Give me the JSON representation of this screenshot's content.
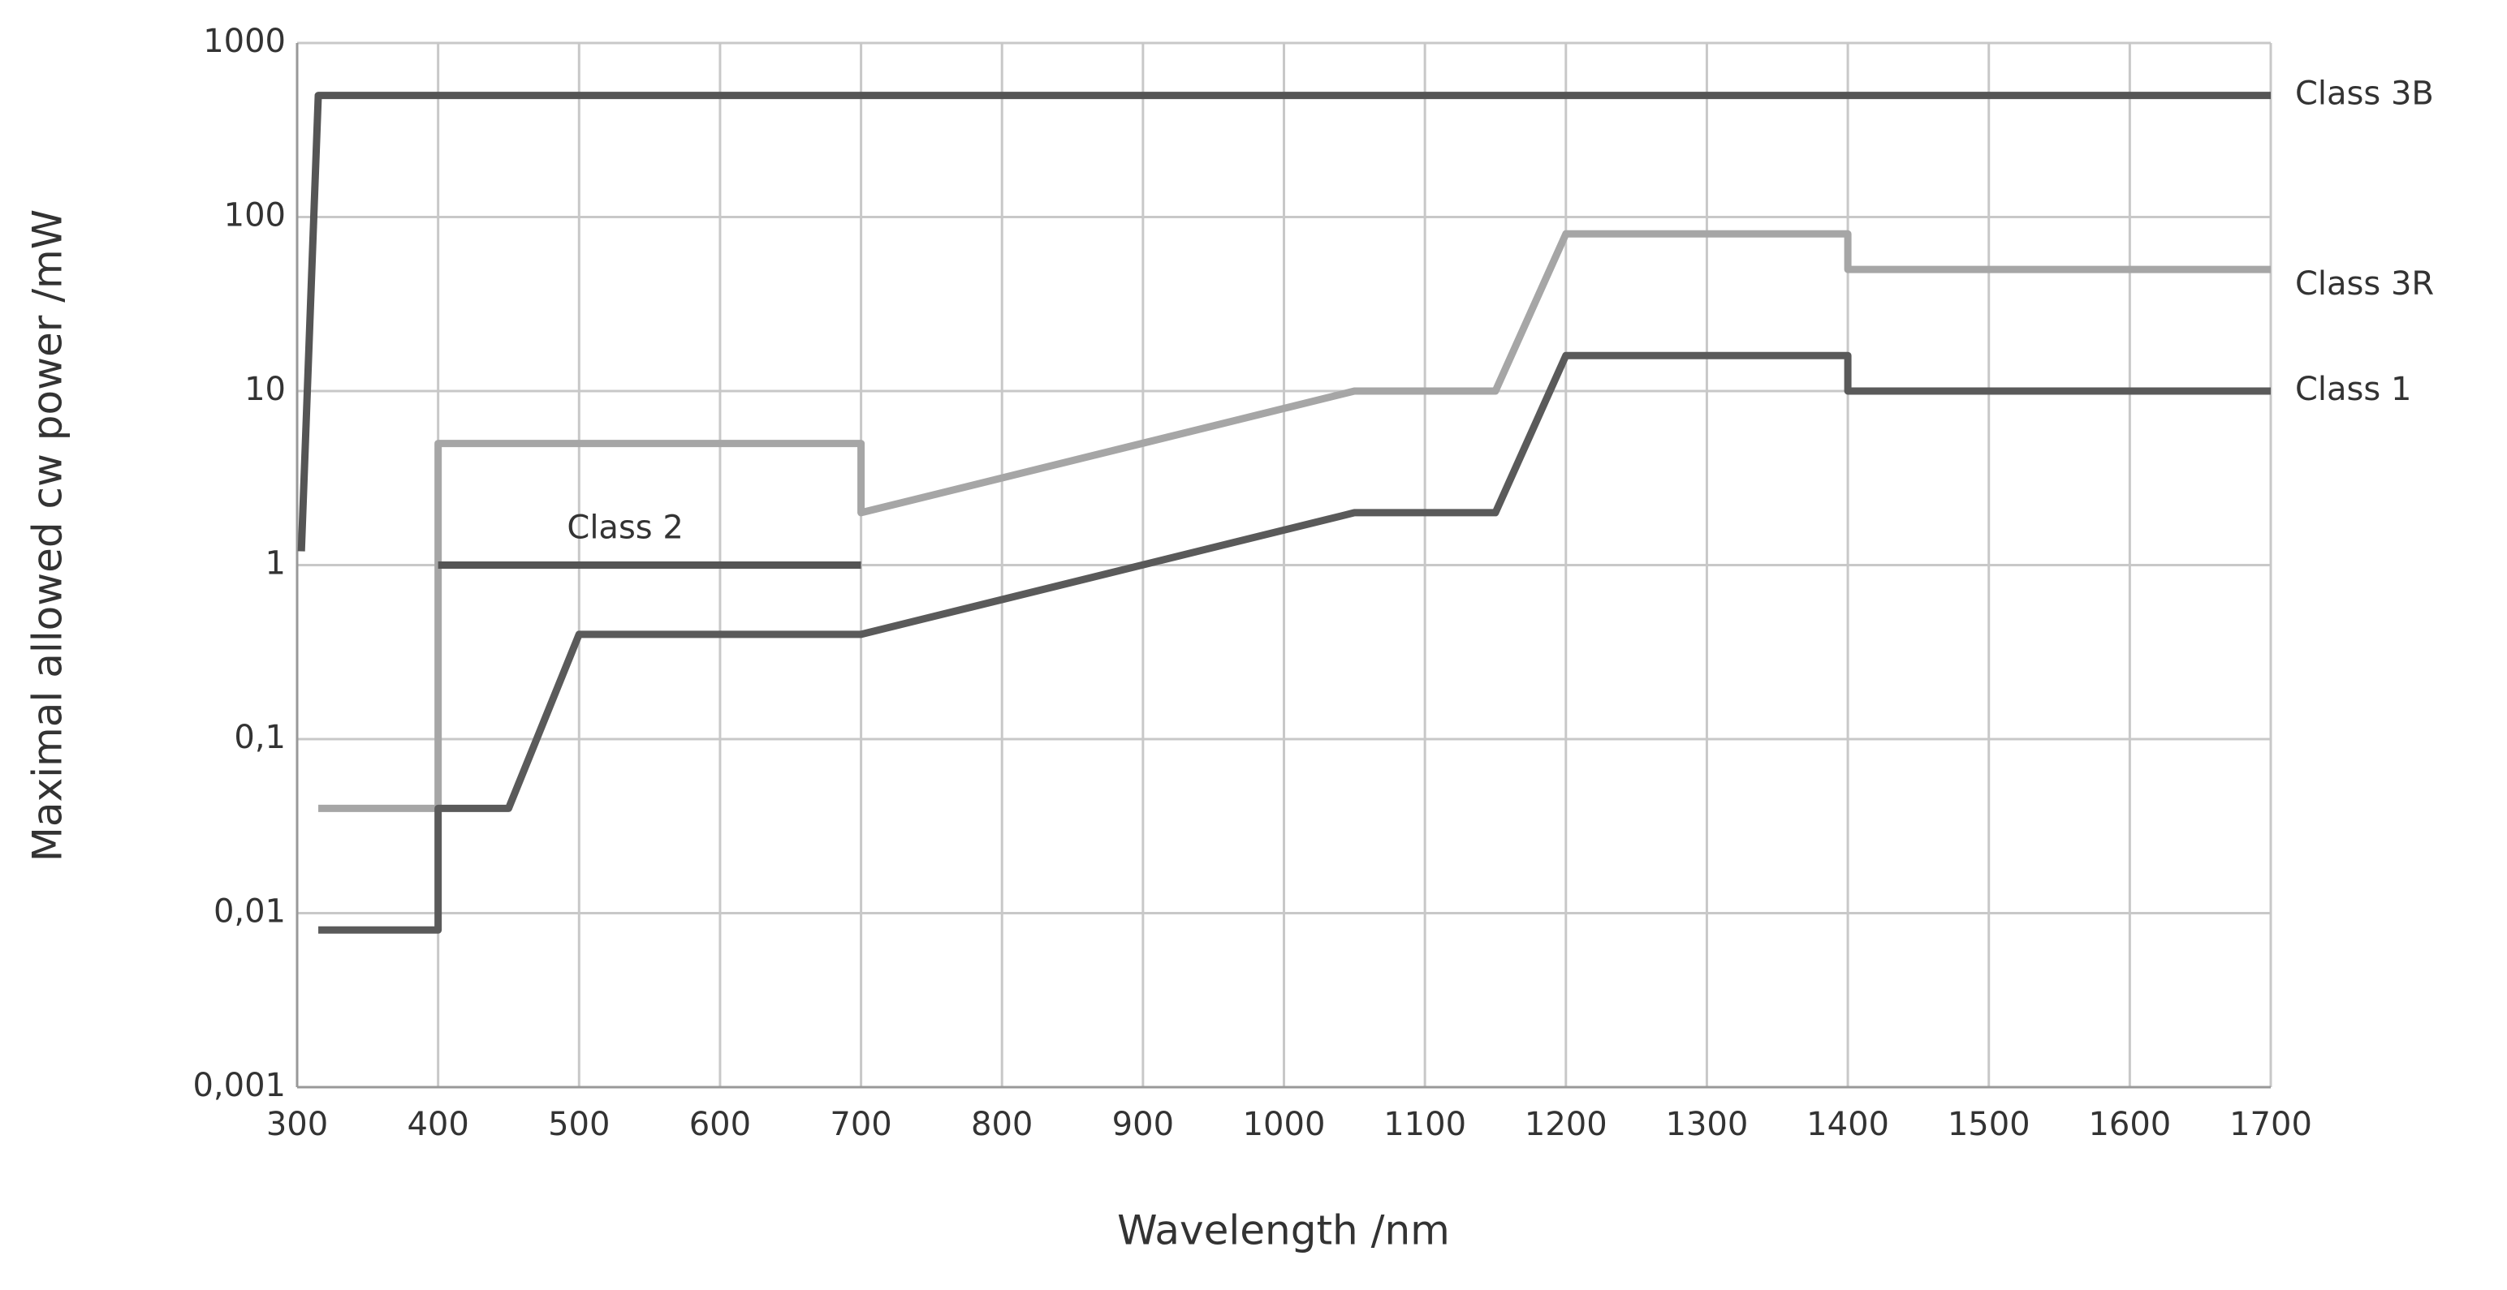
{
  "chart_data": {
    "type": "line",
    "x_label": "Wavelength  /nm",
    "y_label": "Maximal allowed cw power  /mW",
    "y_scale": "log",
    "grid": true,
    "xlim": [
      300,
      1700
    ],
    "ylim": [
      0.001,
      1000
    ],
    "xticks": [
      300,
      400,
      500,
      600,
      700,
      800,
      900,
      1000,
      1100,
      1200,
      1300,
      1400,
      1500,
      1600,
      1700
    ],
    "yticks": [
      {
        "value": 0.001,
        "label": "0,001"
      },
      {
        "value": 0.01,
        "label": "0,01"
      },
      {
        "value": 0.1,
        "label": "0,1"
      },
      1,
      10,
      100,
      1000
    ],
    "series": [
      {
        "name": "Class 3B",
        "color": "#555555",
        "x": [
          303,
          315,
          1700
        ],
        "values": [
          1.2,
          500,
          500
        ]
      },
      {
        "name": "Class 3R",
        "color": "#a6a6a6",
        "x": [
          315,
          400,
          400,
          700,
          700,
          1050,
          1150,
          1200,
          1400,
          1400,
          1700
        ],
        "values": [
          0.04,
          0.04,
          5,
          5,
          2,
          10,
          10,
          80,
          80,
          50,
          50
        ]
      },
      {
        "name": "Class 1",
        "color": "#5a5a5a",
        "x": [
          315,
          400,
          400,
          450,
          500,
          700,
          1050,
          1150,
          1200,
          1400,
          1400,
          1700
        ],
        "values": [
          0.008,
          0.008,
          0.04,
          0.04,
          0.4,
          0.4,
          2,
          2,
          16,
          16,
          10,
          10
        ]
      },
      {
        "name": "Class 2",
        "color": "#555555",
        "x": [
          400,
          700
        ],
        "values": [
          1,
          1
        ]
      }
    ]
  }
}
